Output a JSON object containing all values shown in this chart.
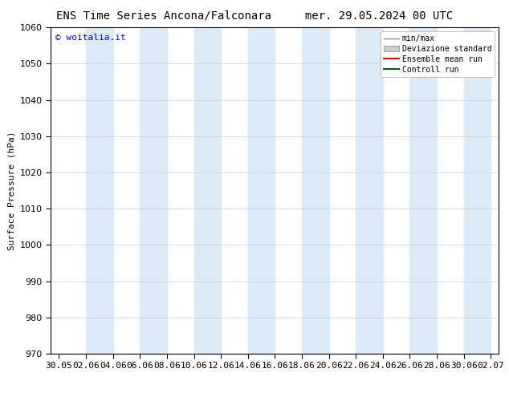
{
  "title_left": "ENS Time Series Ancona/Falconara",
  "title_right": "mer. 29.05.2024 00 UTC",
  "ylabel": "Surface Pressure (hPa)",
  "watermark": "© woitalia.it",
  "watermark_color": "#0000cc",
  "ylim": [
    970,
    1060
  ],
  "yticks": [
    970,
    980,
    990,
    1000,
    1010,
    1020,
    1030,
    1040,
    1050,
    1060
  ],
  "x_tick_labels": [
    "30.05",
    "02.06",
    "04.06",
    "06.06",
    "08.06",
    "10.06",
    "12.06",
    "14.06",
    "16.06",
    "18.06",
    "20.06",
    "22.06",
    "24.06",
    "26.06",
    "28.06",
    "30.06",
    "02.07"
  ],
  "bg_color": "#ffffff",
  "plot_bg_color": "#ffffff",
  "band_color": "#daeaf7",
  "legend_labels": [
    "min/max",
    "Deviazione standard",
    "Ensemble mean run",
    "Controll run"
  ],
  "title_fontsize": 10,
  "axis_fontsize": 8,
  "tick_fontsize": 8,
  "watermark_fontsize": 8
}
